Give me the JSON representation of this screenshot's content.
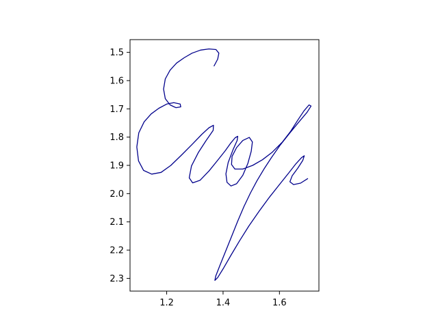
{
  "chart_data": {
    "type": "line",
    "title": "",
    "xlabel": "",
    "ylabel": "",
    "xlim": [
      1.07,
      1.74
    ],
    "ylim": [
      2.345,
      1.455
    ],
    "y_inverted": true,
    "grid": false,
    "legend": "none",
    "x_ticks": [
      {
        "value": 1.2,
        "label": "1.2"
      },
      {
        "value": 1.4,
        "label": "1.4"
      },
      {
        "value": 1.6,
        "label": "1.6"
      }
    ],
    "y_ticks": [
      {
        "value": 1.5,
        "label": "1.5"
      },
      {
        "value": 1.6,
        "label": "1.6"
      },
      {
        "value": 1.7,
        "label": "1.7"
      },
      {
        "value": 1.8,
        "label": "1.8"
      },
      {
        "value": 1.9,
        "label": "1.9"
      },
      {
        "value": 2.0,
        "label": "2.0"
      },
      {
        "value": 2.1,
        "label": "2.1"
      },
      {
        "value": 2.2,
        "label": "2.2"
      },
      {
        "value": 2.3,
        "label": "2.3"
      }
    ],
    "series": [
      {
        "color": "#00008b",
        "points": [
          [
            1.368,
            1.548
          ],
          [
            1.381,
            1.524
          ],
          [
            1.385,
            1.503
          ],
          [
            1.375,
            1.49
          ],
          [
            1.35,
            1.488
          ],
          [
            1.32,
            1.492
          ],
          [
            1.29,
            1.503
          ],
          [
            1.262,
            1.519
          ],
          [
            1.235,
            1.538
          ],
          [
            1.212,
            1.563
          ],
          [
            1.195,
            1.594
          ],
          [
            1.189,
            1.63
          ],
          [
            1.195,
            1.664
          ],
          [
            1.212,
            1.686
          ],
          [
            1.233,
            1.696
          ],
          [
            1.25,
            1.693
          ],
          [
            1.248,
            1.683
          ],
          [
            1.225,
            1.678
          ],
          [
            1.2,
            1.683
          ],
          [
            1.172,
            1.698
          ],
          [
            1.145,
            1.718
          ],
          [
            1.12,
            1.746
          ],
          [
            1.101,
            1.785
          ],
          [
            1.094,
            1.835
          ],
          [
            1.1,
            1.884
          ],
          [
            1.118,
            1.918
          ],
          [
            1.147,
            1.931
          ],
          [
            1.18,
            1.925
          ],
          [
            1.215,
            1.9
          ],
          [
            1.252,
            1.864
          ],
          [
            1.29,
            1.826
          ],
          [
            1.325,
            1.79
          ],
          [
            1.35,
            1.767
          ],
          [
            1.366,
            1.758
          ],
          [
            1.365,
            1.776
          ],
          [
            1.34,
            1.812
          ],
          [
            1.312,
            1.855
          ],
          [
            1.288,
            1.902
          ],
          [
            1.28,
            1.944
          ],
          [
            1.292,
            1.962
          ],
          [
            1.318,
            1.953
          ],
          [
            1.35,
            1.92
          ],
          [
            1.38,
            1.883
          ],
          [
            1.408,
            1.848
          ],
          [
            1.428,
            1.82
          ],
          [
            1.443,
            1.802
          ],
          [
            1.452,
            1.797
          ],
          [
            1.45,
            1.812
          ],
          [
            1.435,
            1.845
          ],
          [
            1.418,
            1.89
          ],
          [
            1.41,
            1.93
          ],
          [
            1.414,
            1.96
          ],
          [
            1.428,
            1.973
          ],
          [
            1.448,
            1.965
          ],
          [
            1.47,
            1.935
          ],
          [
            1.488,
            1.893
          ],
          [
            1.5,
            1.85
          ],
          [
            1.504,
            1.817
          ],
          [
            1.493,
            1.801
          ],
          [
            1.47,
            1.812
          ],
          [
            1.448,
            1.837
          ],
          [
            1.432,
            1.868
          ],
          [
            1.43,
            1.897
          ],
          [
            1.442,
            1.913
          ],
          [
            1.47,
            1.913
          ],
          [
            1.505,
            1.9
          ],
          [
            1.54,
            1.88
          ],
          [
            1.575,
            1.853
          ],
          [
            1.61,
            1.818
          ],
          [
            1.64,
            1.779
          ],
          [
            1.665,
            1.74
          ],
          [
            1.687,
            1.707
          ],
          [
            1.705,
            1.686
          ],
          [
            1.712,
            1.69
          ],
          [
            1.698,
            1.712
          ],
          [
            1.67,
            1.745
          ],
          [
            1.636,
            1.786
          ],
          [
            1.602,
            1.829
          ],
          [
            1.572,
            1.872
          ],
          [
            1.545,
            1.913
          ],
          [
            1.52,
            1.955
          ],
          [
            1.497,
            1.998
          ],
          [
            1.474,
            2.046
          ],
          [
            1.452,
            2.097
          ],
          [
            1.43,
            2.152
          ],
          [
            1.408,
            2.207
          ],
          [
            1.388,
            2.256
          ],
          [
            1.374,
            2.292
          ],
          [
            1.371,
            2.307
          ],
          [
            1.381,
            2.297
          ],
          [
            1.402,
            2.263
          ],
          [
            1.428,
            2.218
          ],
          [
            1.458,
            2.168
          ],
          [
            1.492,
            2.114
          ],
          [
            1.528,
            2.062
          ],
          [
            1.565,
            2.012
          ],
          [
            1.6,
            1.968
          ],
          [
            1.632,
            1.928
          ],
          [
            1.658,
            1.895
          ],
          [
            1.678,
            1.873
          ],
          [
            1.688,
            1.866
          ],
          [
            1.683,
            1.882
          ],
          [
            1.665,
            1.91
          ],
          [
            1.645,
            1.937
          ],
          [
            1.637,
            1.958
          ],
          [
            1.65,
            1.968
          ],
          [
            1.675,
            1.963
          ],
          [
            1.7,
            1.947
          ]
        ]
      }
    ]
  }
}
